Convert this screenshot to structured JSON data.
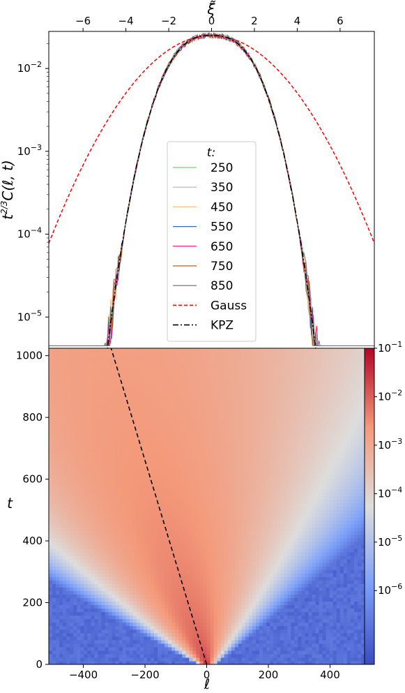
{
  "chart_data": [
    {
      "type": "line",
      "xlabel": "ξ̃",
      "ylabel": "t^{2/3}C(ℓ, t)",
      "xlim": [
        -7.6,
        7.6
      ],
      "ylim": [
        4.2e-06,
        0.028
      ],
      "yscale": "log",
      "x_ticks": [
        -6,
        -4,
        -2,
        0,
        2,
        4,
        6
      ],
      "x_tick_labels": [
        "−6",
        "−4",
        "−2",
        "0",
        "2",
        "4",
        "6"
      ],
      "y_ticks": [
        0.01,
        0.001,
        0.0001,
        1e-05
      ],
      "y_tick_labels": [
        {
          "base": "10",
          "exp": "−2"
        },
        {
          "base": "10",
          "exp": "−3"
        },
        {
          "base": "10",
          "exp": "−4"
        },
        {
          "base": "10",
          "exp": "−5"
        }
      ],
      "legend": {
        "title": "t:",
        "placement": "center"
      },
      "series": [
        {
          "name": "250",
          "color": "#7fc97f",
          "style": "solid"
        },
        {
          "name": "350",
          "color": "#b0b0b0",
          "style": "solid"
        },
        {
          "name": "450",
          "color": "#fdc086",
          "style": "solid"
        },
        {
          "name": "550",
          "color": "#386cb0",
          "style": "solid"
        },
        {
          "name": "650",
          "color": "#f0027f",
          "style": "solid"
        },
        {
          "name": "750",
          "color": "#bf5b17",
          "style": "solid"
        },
        {
          "name": "850",
          "color": "#666666",
          "style": "solid"
        },
        {
          "name": "Gauss",
          "color": "#ff0000",
          "style": "dashed"
        },
        {
          "name": "KPZ",
          "color": "#000000",
          "style": "dashdot"
        }
      ],
      "peak_value": 0.025
    },
    {
      "type": "heatmap",
      "xlabel": "ℓ",
      "ylabel": "t",
      "xlim": [
        -512,
        512
      ],
      "ylim": [
        0,
        1024
      ],
      "x_ticks": [
        -400,
        -200,
        0,
        200,
        400
      ],
      "x_tick_labels": [
        "−400",
        "−200",
        "0",
        "200",
        "400"
      ],
      "y_ticks": [
        0,
        200,
        400,
        600,
        800,
        1000
      ],
      "y_tick_labels": [
        "0",
        "200",
        "400",
        "600",
        "800",
        "1000"
      ],
      "colorbar": {
        "scale": "log",
        "range": [
          3e-08,
          0.1
        ],
        "colormap": "coolwarm",
        "ticks": [
          {
            "value": 0.1,
            "base": "10",
            "exp": "−1"
          },
          {
            "value": 0.01,
            "base": "10",
            "exp": "−2"
          },
          {
            "value": 0.001,
            "base": "10",
            "exp": "−3"
          },
          {
            "value": 0.0001,
            "base": "10",
            "exp": "−4"
          },
          {
            "value": 1e-05,
            "base": "10",
            "exp": "−5"
          },
          {
            "value": 1e-06,
            "base": "10",
            "exp": "−6"
          }
        ]
      },
      "dashed_line": {
        "from": [
          0,
          0
        ],
        "to": [
          -310,
          1024
        ],
        "color": "#000000"
      }
    }
  ]
}
